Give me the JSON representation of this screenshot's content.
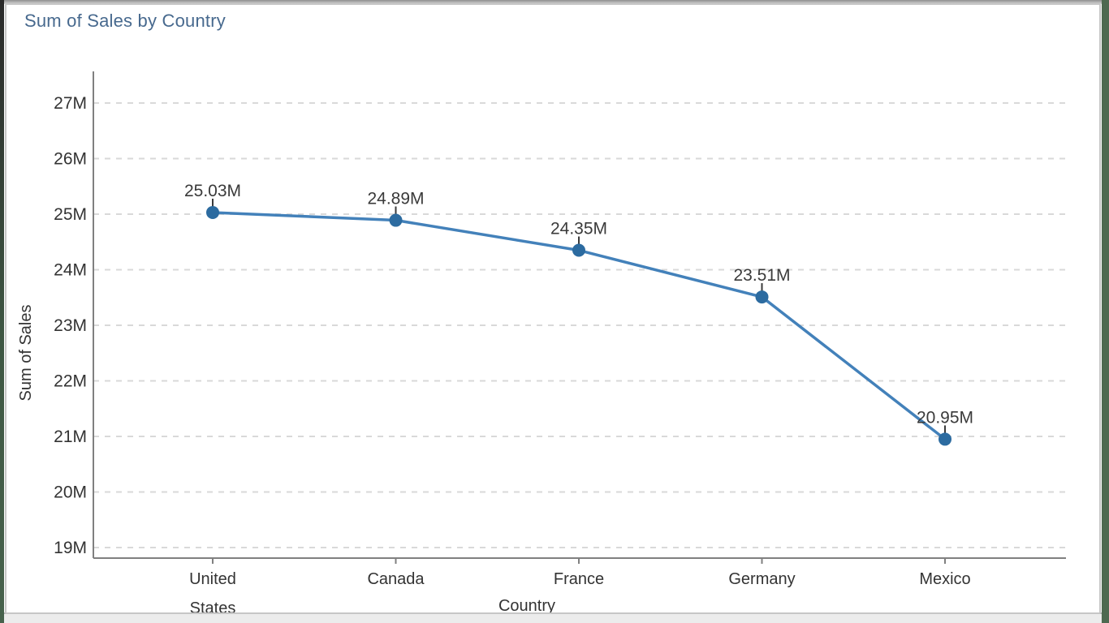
{
  "chart_data": {
    "type": "line",
    "title": "Sum of Sales by Country",
    "xlabel": "Country",
    "ylabel": "Sum of Sales",
    "categories": [
      "United States",
      "Canada",
      "France",
      "Germany",
      "Mexico"
    ],
    "series": [
      {
        "name": "Sum of Sales",
        "values_millions": [
          25.03,
          24.89,
          24.35,
          23.51,
          20.95
        ],
        "data_labels": [
          "25.03M",
          "24.89M",
          "24.35M",
          "23.51M",
          "20.95M"
        ]
      }
    ],
    "y_ticks": [
      {
        "label": "27M",
        "value": 27
      },
      {
        "label": "26M",
        "value": 26
      },
      {
        "label": "25M",
        "value": 25
      },
      {
        "label": "24M",
        "value": 24
      },
      {
        "label": "23M",
        "value": 23
      },
      {
        "label": "22M",
        "value": 22
      },
      {
        "label": "21M",
        "value": 21
      },
      {
        "label": "20M",
        "value": 20
      },
      {
        "label": "19M",
        "value": 19
      }
    ],
    "ylim_millions": [
      19,
      27
    ],
    "grid": "horizontal-dashed",
    "legend": "none",
    "colors": {
      "line": "#4381ba",
      "marker": "#2c6ba0",
      "gridline": "#d9d9d9",
      "axis_line": "#808080",
      "tick_text": "#333333",
      "data_label_text": "#3a3a3a",
      "title_text": "#47698e"
    }
  }
}
